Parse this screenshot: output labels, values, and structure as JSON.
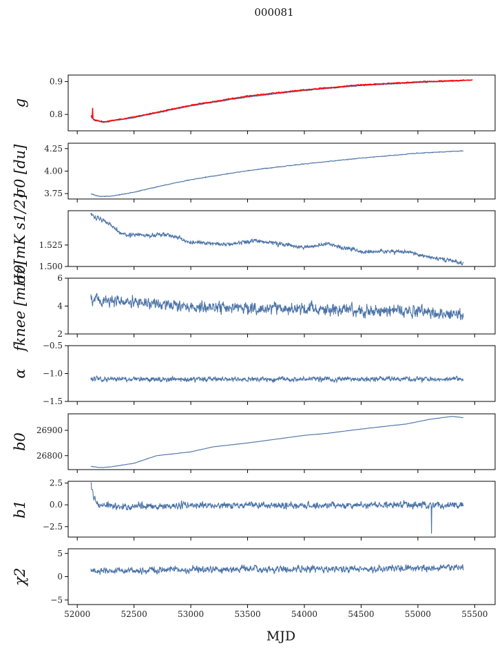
{
  "figure": {
    "title": "000081",
    "xlabel": "MJD",
    "series_color": "#4a72a6",
    "overlay_color": "#ff0000"
  },
  "chart_data": [
    {
      "type": "line",
      "ylabel": "g",
      "xlim": [
        51920,
        55680
      ],
      "ylim": [
        0.75,
        0.92
      ],
      "yticks": [
        0.8,
        0.9
      ],
      "ytick_labels": [
        "0.8",
        "0.9"
      ],
      "x_range": [
        52120,
        55400
      ],
      "noise": 0.0012,
      "anchors": [
        [
          52120,
          0.792
        ],
        [
          52150,
          0.782
        ],
        [
          52230,
          0.776
        ],
        [
          52500,
          0.79
        ],
        [
          53000,
          0.826
        ],
        [
          53500,
          0.853
        ],
        [
          54000,
          0.873
        ],
        [
          54500,
          0.888
        ],
        [
          55000,
          0.897
        ],
        [
          55400,
          0.903
        ]
      ],
      "overlay": {
        "x_range": [
          52120,
          55480
        ],
        "noise": 0.0014,
        "spike_at": 52135,
        "spike_value": 0.82,
        "anchors": [
          [
            52120,
            0.797
          ],
          [
            52150,
            0.783
          ],
          [
            52230,
            0.777
          ],
          [
            52500,
            0.792
          ],
          [
            53000,
            0.828
          ],
          [
            53500,
            0.856
          ],
          [
            54000,
            0.875
          ],
          [
            54500,
            0.89
          ],
          [
            55000,
            0.899
          ],
          [
            55480,
            0.905
          ]
        ]
      }
    },
    {
      "type": "line",
      "ylabel": "σ0 [du]",
      "xlim": [
        51920,
        55680
      ],
      "ylim": [
        3.69,
        4.31
      ],
      "yticks": [
        3.75,
        4.0,
        4.25
      ],
      "ytick_labels": [
        "3.75",
        "4.00",
        "4.25"
      ],
      "x_range": [
        52120,
        55400
      ],
      "noise": 0.004,
      "anchors": [
        [
          52120,
          3.745
        ],
        [
          52200,
          3.718
        ],
        [
          52300,
          3.722
        ],
        [
          52500,
          3.765
        ],
        [
          52750,
          3.84
        ],
        [
          53000,
          3.905
        ],
        [
          53500,
          4.005
        ],
        [
          54000,
          4.08
        ],
        [
          54500,
          4.145
        ],
        [
          55000,
          4.2
        ],
        [
          55400,
          4.225
        ]
      ]
    },
    {
      "type": "line",
      "ylabel": "σ0[mK s1/2]",
      "xlim": [
        51920,
        55680
      ],
      "ylim": [
        1.5,
        1.565
      ],
      "yticks": [
        1.5,
        1.525
      ],
      "ytick_labels": [
        "1.500",
        "1.525"
      ],
      "x_range": [
        52120,
        55400
      ],
      "noise": 0.0025,
      "anchors": [
        [
          52120,
          1.56
        ],
        [
          52250,
          1.553
        ],
        [
          52400,
          1.538
        ],
        [
          52600,
          1.536
        ],
        [
          52800,
          1.537
        ],
        [
          53000,
          1.528
        ],
        [
          53300,
          1.526
        ],
        [
          53600,
          1.53
        ],
        [
          54000,
          1.522
        ],
        [
          54200,
          1.527
        ],
        [
          54500,
          1.517
        ],
        [
          54900,
          1.517
        ],
        [
          55300,
          1.506
        ],
        [
          55400,
          1.504
        ]
      ]
    },
    {
      "type": "line",
      "ylabel": "fknee [mHz]",
      "xlim": [
        51920,
        55680
      ],
      "ylim": [
        2,
        6
      ],
      "yticks": [
        2,
        4,
        6
      ],
      "ytick_labels": [
        "2",
        "4",
        "6"
      ],
      "x_range": [
        52120,
        55400
      ],
      "noise": 0.45,
      "anchors": [
        [
          52120,
          4.5
        ],
        [
          52600,
          4.2
        ],
        [
          53200,
          3.9
        ],
        [
          54000,
          3.8
        ],
        [
          55000,
          3.6
        ],
        [
          55400,
          3.4
        ]
      ]
    },
    {
      "type": "line",
      "ylabel": "α",
      "xlim": [
        51920,
        55680
      ],
      "ylim": [
        -1.5,
        -0.5
      ],
      "yticks": [
        -1.5,
        -1.0,
        -0.5
      ],
      "ytick_labels": [
        "−1.5",
        "−1.0",
        "−0.5"
      ],
      "x_range": [
        52120,
        55400
      ],
      "noise": 0.045,
      "anchors": [
        [
          52120,
          -1.1
        ],
        [
          55400,
          -1.1
        ]
      ]
    },
    {
      "type": "line",
      "ylabel": "b0",
      "xlim": [
        51920,
        55680
      ],
      "ylim": [
        26745,
        26965
      ],
      "yticks": [
        26800,
        26900
      ],
      "ytick_labels": [
        "26800",
        "26900"
      ],
      "x_range": [
        52120,
        55400
      ],
      "noise": 0.6,
      "anchors": [
        [
          52120,
          26758
        ],
        [
          52200,
          26753
        ],
        [
          52300,
          26756
        ],
        [
          52500,
          26770
        ],
        [
          52700,
          26800
        ],
        [
          53000,
          26815
        ],
        [
          53200,
          26835
        ],
        [
          53500,
          26850
        ],
        [
          53800,
          26868
        ],
        [
          54000,
          26880
        ],
        [
          54200,
          26888
        ],
        [
          54500,
          26905
        ],
        [
          54900,
          26925
        ],
        [
          55100,
          26943
        ],
        [
          55300,
          26955
        ],
        [
          55400,
          26950
        ]
      ]
    },
    {
      "type": "line",
      "ylabel": "b1",
      "xlim": [
        51920,
        55680
      ],
      "ylim": [
        -3.7,
        2.7
      ],
      "yticks": [
        -2.5,
        0.0,
        2.5
      ],
      "ytick_labels": [
        "−2.5",
        "0.0",
        "2.5"
      ],
      "x_range": [
        52120,
        55400
      ],
      "noise": 0.4,
      "spike_at": 55120,
      "spike_value": -3.3,
      "anchors": [
        [
          52120,
          2.2
        ],
        [
          52150,
          0.6
        ],
        [
          52200,
          -0.1
        ],
        [
          52400,
          -0.2
        ],
        [
          53000,
          -0.1
        ],
        [
          54000,
          -0.05
        ],
        [
          55400,
          0.0
        ]
      ]
    },
    {
      "type": "line",
      "ylabel": "χ2",
      "xlim": [
        51920,
        55680
      ],
      "ylim": [
        -6,
        6
      ],
      "yticks": [
        -5,
        0,
        5
      ],
      "ytick_labels": [
        "−5",
        "0",
        "5"
      ],
      "x_range": [
        52120,
        55400
      ],
      "noise": 0.75,
      "anchors": [
        [
          52120,
          1.2
        ],
        [
          53000,
          1.5
        ],
        [
          54500,
          1.7
        ],
        [
          55400,
          2.0
        ]
      ],
      "xticks": [
        52000,
        52500,
        53000,
        53500,
        54000,
        54500,
        55000,
        55500
      ],
      "xtick_labels": [
        "52000",
        "52500",
        "53000",
        "53500",
        "54000",
        "54500",
        "55000",
        "55500"
      ]
    }
  ]
}
